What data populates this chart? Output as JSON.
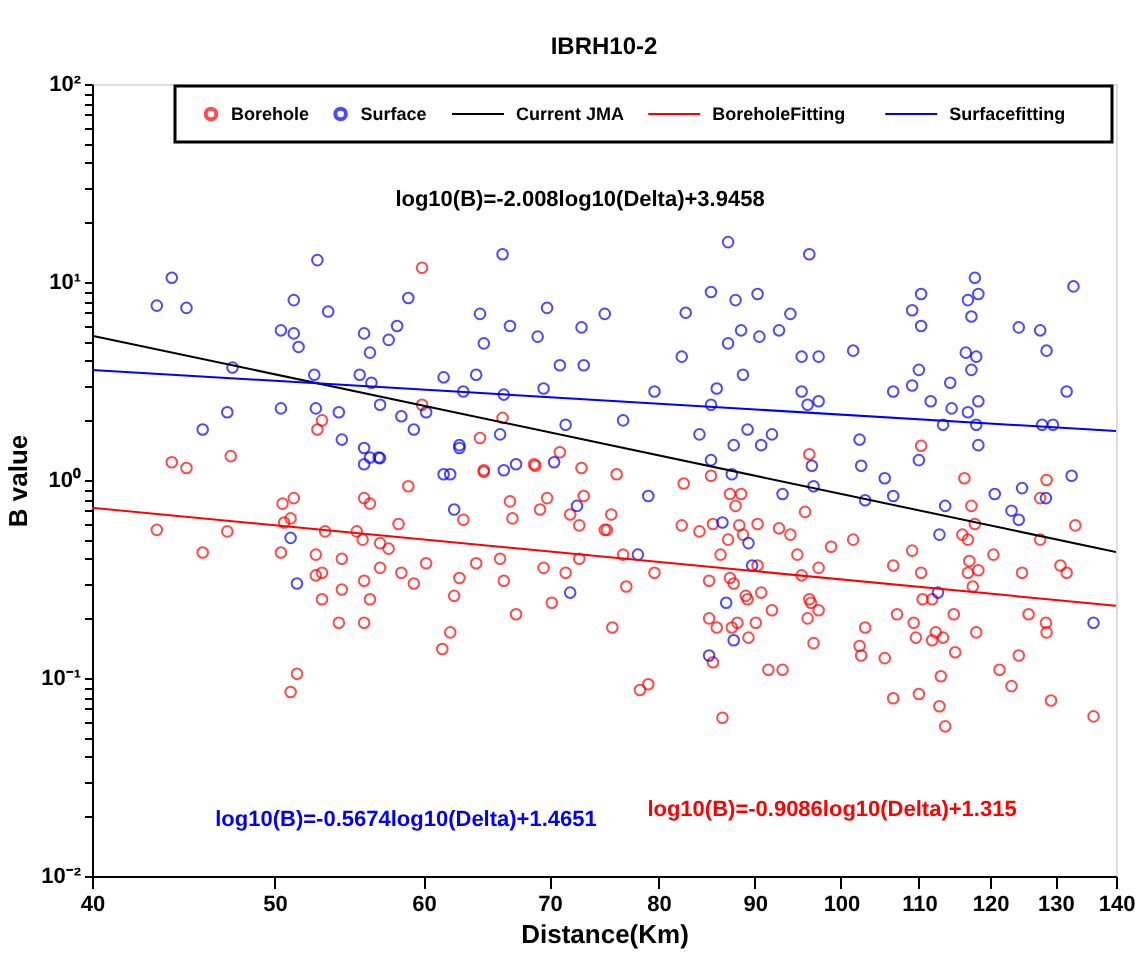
{
  "chart_data": {
    "type": "scatter",
    "title": "IBRH10-2",
    "xlabel": "Distance(Km)",
    "ylabel": "B value",
    "log": "xy",
    "grid": false,
    "legend": "top",
    "xlim": [
      40,
      140
    ],
    "xticks": [
      40,
      50,
      60,
      70,
      80,
      90,
      100,
      110,
      120,
      130,
      140
    ],
    "ylim": [
      0.01,
      100
    ],
    "yticks": [
      {
        "value": 0.01,
        "label": "10⁻²"
      },
      {
        "value": 0.02,
        "label": null
      },
      {
        "value": 0.03,
        "label": null
      },
      {
        "value": 0.04,
        "label": null
      },
      {
        "value": 0.05,
        "label": null
      },
      {
        "value": 0.06,
        "label": null
      },
      {
        "value": 0.07,
        "label": null
      },
      {
        "value": 0.08,
        "label": null
      },
      {
        "value": 0.09,
        "label": null
      },
      {
        "value": 0.1,
        "label": "10⁻¹"
      },
      {
        "value": 0.2,
        "label": null
      },
      {
        "value": 0.3,
        "label": null
      },
      {
        "value": 0.4,
        "label": null
      },
      {
        "value": 0.5,
        "label": null
      },
      {
        "value": 0.6,
        "label": null
      },
      {
        "value": 0.7,
        "label": null
      },
      {
        "value": 0.8,
        "label": null
      },
      {
        "value": 0.9,
        "label": null
      },
      {
        "value": 1,
        "label": "10⁰"
      },
      {
        "value": 2,
        "label": null
      },
      {
        "value": 3,
        "label": null
      },
      {
        "value": 4,
        "label": null
      },
      {
        "value": 5,
        "label": null
      },
      {
        "value": 6,
        "label": null
      },
      {
        "value": 7,
        "label": null
      },
      {
        "value": 8,
        "label": null
      },
      {
        "value": 9,
        "label": null
      },
      {
        "value": 10,
        "label": "10¹"
      },
      {
        "value": 20,
        "label": null
      },
      {
        "value": 30,
        "label": null
      },
      {
        "value": 40,
        "label": null
      },
      {
        "value": 50,
        "label": null
      },
      {
        "value": 60,
        "label": null
      },
      {
        "value": 70,
        "label": null
      },
      {
        "value": 80,
        "label": null
      },
      {
        "value": 90,
        "label": null
      },
      {
        "value": 100,
        "label": "10²"
      }
    ],
    "annotations": [
      "log10(B)=-2.008log10(Delta)+3.9458",
      "log10(B)=-0.5674log10(Delta)+1.4651",
      "log10(B)=-0.9086log10(Delta)+1.315"
    ],
    "series": [
      {
        "name": "Borehole",
        "marker": "circle",
        "color": "#ff0000",
        "x": [
          59.9,
          59.9,
          66.1,
          64.3,
          44.1,
          44.9,
          47.4,
          53.0,
          52.7,
          64.6,
          68.8,
          70.9,
          72.8,
          43.3,
          45.8,
          47.2,
          50.5,
          51.2,
          51.0,
          50.6,
          50.4,
          52.6,
          53.2,
          52.6,
          53.0,
          54.3,
          53.0,
          54.3,
          54.1,
          51.4,
          51.0,
          55.8,
          56.2,
          55.3,
          55.7,
          56.9,
          57.5,
          56.9,
          55.8,
          56.2,
          55.8,
          58.2,
          58.9,
          58.4,
          59.3,
          60.2,
          61.4,
          62.0,
          62.3,
          62.7,
          63.0,
          64.0,
          64.6,
          65.9,
          66.2,
          66.7,
          66.9,
          67.2,
          68.7,
          69.2,
          69.8,
          69.5,
          70.2,
          71.4,
          71.8,
          72.6,
          73.0,
          72.6,
          74.9,
          76.0,
          75.5,
          75.1,
          76.6,
          76.9,
          75.6,
          78.2,
          79.0,
          79.6,
          82.5,
          82.3,
          84.1,
          85.1,
          85.1,
          85.9,
          85.5,
          85.3,
          86.3,
          87.1,
          87.3,
          87.7,
          87.3,
          87.9,
          88.3,
          88.5,
          88.7,
          89.2,
          89.0,
          88.1,
          87.5,
          89.3,
          90.1,
          90.3,
          90.3,
          90.7,
          85.5,
          86.5,
          91.5,
          93.1,
          91.9,
          92.7,
          94.0,
          94.8,
          95.7,
          95.3,
          96.2,
          96.4,
          97.3,
          96.0,
          96.7,
          97.3,
          96.2,
          98.8,
          101.5,
          103.0,
          102.3,
          102.5,
          105.5,
          106.6,
          106.6,
          107.1,
          109.1,
          109.3,
          109.6,
          110.3,
          110.3,
          110.0,
          110.5,
          111.8,
          111.8,
          112.3,
          112.8,
          113.3,
          113.0,
          113.6,
          114.8,
          115.0,
          116.3,
          116.0,
          116.8,
          117.3,
          117.8,
          117.0,
          116.8,
          117.5,
          118.3,
          118.0,
          120.5,
          121.4,
          123.2,
          124.3,
          124.8,
          125.8,
          128.5,
          127.6,
          127.6,
          128.6,
          128.6,
          129.3,
          130.8,
          131.8,
          133.2,
          136.2
        ],
        "values": [
          11.8,
          2.4,
          2.06,
          1.63,
          1.23,
          1.15,
          1.32,
          2.0,
          1.8,
          1.12,
          1.18,
          1.38,
          1.15,
          0.56,
          0.43,
          0.55,
          0.76,
          0.81,
          0.64,
          0.61,
          0.43,
          0.42,
          0.55,
          0.33,
          0.34,
          0.4,
          0.25,
          0.28,
          0.19,
          0.105,
          0.085,
          0.81,
          0.76,
          0.55,
          0.5,
          0.48,
          0.45,
          0.36,
          0.31,
          0.25,
          0.19,
          0.6,
          0.93,
          0.34,
          0.3,
          0.38,
          0.14,
          0.17,
          0.26,
          0.32,
          0.63,
          0.38,
          1.1,
          0.4,
          0.31,
          0.78,
          0.64,
          0.21,
          1.2,
          0.71,
          0.81,
          0.36,
          0.24,
          0.34,
          0.67,
          0.59,
          0.83,
          0.4,
          0.56,
          1.07,
          0.67,
          0.56,
          0.42,
          0.29,
          0.18,
          0.087,
          0.093,
          0.34,
          0.96,
          0.59,
          0.55,
          0.31,
          0.2,
          0.18,
          0.6,
          1.05,
          0.42,
          0.5,
          0.32,
          0.3,
          0.85,
          0.74,
          0.59,
          0.85,
          0.53,
          0.25,
          0.26,
          0.19,
          0.18,
          0.16,
          0.19,
          0.6,
          0.37,
          0.27,
          0.12,
          0.063,
          0.11,
          0.11,
          0.22,
          0.57,
          0.53,
          0.42,
          0.69,
          0.33,
          0.25,
          0.24,
          0.22,
          0.2,
          0.15,
          0.36,
          1.35,
          0.46,
          0.5,
          0.18,
          0.145,
          0.13,
          0.126,
          0.37,
          0.079,
          0.21,
          0.44,
          0.19,
          0.16,
          0.34,
          1.49,
          0.083,
          0.25,
          0.25,
          0.155,
          0.17,
          0.072,
          0.16,
          0.102,
          0.057,
          0.21,
          0.135,
          1.02,
          0.53,
          0.5,
          0.74,
          0.6,
          0.39,
          0.34,
          0.29,
          0.35,
          0.17,
          0.42,
          0.11,
          0.091,
          0.13,
          0.34,
          0.21,
          0.19,
          0.5,
          0.81,
          0.17,
          1.0,
          0.077,
          0.37,
          0.34,
          0.59,
          0.064
        ]
      },
      {
        "name": "Surface",
        "marker": "circle",
        "color": "#0000ff",
        "x": [
          44.1,
          43.3,
          44.9,
          52.7,
          51.2,
          53.4,
          50.4,
          51.2,
          51.5,
          55.8,
          56.2,
          57.5,
          58.1,
          58.9,
          66.1,
          64.3,
          64.6,
          66.7,
          69.0,
          69.8,
          70.9,
          72.8,
          73.0,
          74.9,
          47.5,
          52.5,
          55.5,
          56.3,
          61.5,
          64.0,
          66.2,
          69.5,
          63.0,
          45.8,
          47.2,
          50.4,
          52.6,
          54.1,
          54.3,
          56.9,
          58.4,
          59.3,
          60.2,
          62.7,
          65.9,
          71.4,
          55.8,
          56.2,
          56.8,
          87.1,
          96.2,
          85.3,
          87.9,
          90.3,
          82.7,
          94.0,
          92.7,
          88.5,
          90.5,
          87.1,
          82.3,
          88.7,
          95.3,
          97.3,
          101.5,
          79.6,
          85.9,
          95.3,
          97.3,
          96.0,
          85.3,
          76.6,
          84.1,
          87.7,
          89.2,
          90.7,
          91.9,
          102.3,
          109.1,
          110.3,
          110.3,
          110.0,
          106.6,
          109.1,
          111.6,
          114.3,
          114.5,
          116.8,
          117.8,
          118.3,
          117.3,
          116.5,
          117.3,
          118.0,
          118.3,
          116.8,
          118.0,
          118.3,
          113.3,
          124.3,
          127.6,
          128.6,
          132.9,
          131.8,
          127.9,
          129.6,
          79.0,
          78.0,
          85.3,
          87.5,
          86.5,
          89.3,
          89.7,
          86.9,
          87.7,
          85.1,
          93.1,
          96.5,
          96.7,
          102.5,
          103.0,
          105.5,
          106.6,
          110.0,
          112.6,
          113.6,
          112.8,
          120.7,
          123.2,
          124.3,
          124.8,
          128.5,
          132.6,
          136.2,
          51.0,
          51.4,
          71.8,
          72.4,
          62.3,
          62.7,
          66.2,
          67.2,
          70.4,
          55.8,
          56.9,
          61.5,
          62.0
        ],
        "values": [
          10.5,
          7.6,
          7.4,
          12.9,
          8.1,
          7.1,
          5.7,
          5.5,
          4.7,
          5.5,
          4.4,
          5.1,
          6.0,
          8.3,
          13.8,
          6.9,
          4.9,
          6.0,
          5.3,
          7.4,
          3.8,
          5.9,
          3.8,
          6.9,
          3.7,
          3.4,
          3.4,
          3.1,
          3.3,
          3.4,
          2.7,
          2.9,
          2.8,
          1.8,
          2.2,
          2.3,
          2.3,
          2.2,
          1.6,
          2.4,
          2.1,
          1.8,
          2.2,
          1.5,
          1.7,
          1.9,
          1.2,
          1.3,
          1.3,
          15.9,
          13.8,
          8.9,
          8.1,
          8.7,
          7.0,
          6.9,
          5.7,
          5.7,
          5.3,
          4.9,
          4.2,
          3.4,
          4.2,
          4.2,
          4.5,
          2.8,
          2.9,
          2.8,
          2.5,
          2.4,
          2.4,
          2.0,
          1.7,
          1.5,
          1.8,
          1.5,
          1.7,
          1.6,
          7.2,
          8.7,
          6.0,
          3.6,
          2.8,
          3.0,
          2.5,
          3.1,
          2.3,
          8.1,
          10.5,
          8.7,
          6.7,
          4.4,
          3.6,
          4.2,
          2.5,
          2.2,
          1.9,
          1.5,
          1.9,
          5.9,
          5.7,
          4.5,
          9.5,
          2.8,
          1.9,
          1.9,
          0.83,
          0.42,
          1.26,
          1.07,
          0.61,
          0.48,
          0.37,
          0.24,
          0.155,
          0.13,
          0.85,
          1.18,
          0.93,
          1.18,
          0.79,
          1.02,
          0.83,
          1.26,
          0.27,
          0.74,
          0.53,
          0.85,
          0.7,
          0.63,
          0.91,
          0.81,
          1.05,
          0.19,
          0.51,
          0.3,
          0.27,
          0.74,
          0.71,
          1.45,
          1.12,
          1.2,
          1.23,
          1.45,
          1.29,
          1.07,
          1.07
        ]
      },
      {
        "name": "Current JMA",
        "type": "line",
        "marker": "none",
        "line_style": "solid",
        "color": "#000000",
        "x": [
          40,
          140
        ],
        "values": [
          5.357,
          0.4329
        ]
      },
      {
        "name": "BoreholeFitting",
        "type": "line",
        "marker": "none",
        "line_style": "solid",
        "color": "#ff0000",
        "x": [
          40,
          140
        ],
        "values": [
          0.7234,
          0.2318
        ]
      },
      {
        "name": "Surfacefitting",
        "type": "line",
        "marker": "none",
        "line_style": "solid",
        "color": "#0000ff",
        "x": [
          40,
          140
        ],
        "values": [
          3.598,
          1.768
        ]
      }
    ]
  }
}
